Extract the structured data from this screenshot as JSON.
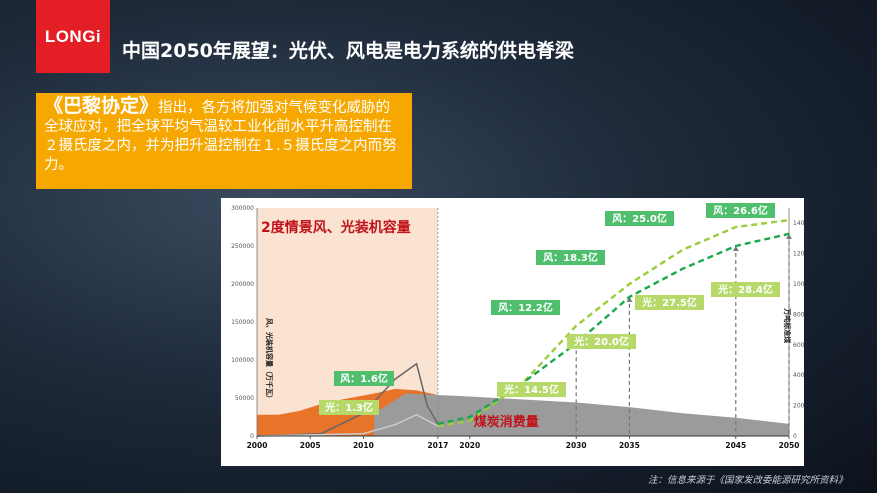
{
  "logo": {
    "text": "LONGi"
  },
  "title": "中国2050年展望：光伏、风电是电力系统的供电脊梁",
  "callout": {
    "accord": "《巴黎协定》",
    "text": "指出，各方将加强对气候变化威胁的全球应对，把全球平均气温较工业化前水平升高控制在２摄氏度之内，并为把升温控制在１.５摄氏度之内而努力。"
  },
  "note": "注：信息来源于《国家发改委能源研究所资料》",
  "chart_data": {
    "type": "line",
    "title": "2度情景风、光装机容量",
    "annotation_coal": "煤炭消费量",
    "ylabel_left": "风、光装机容量（万千瓦）",
    "ylabel_right": "万吨标准煤",
    "ylim_left": [
      0,
      300000
    ],
    "ylim_right": [
      0,
      15000
    ],
    "yticks_left": [
      "0",
      "50000",
      "100000",
      "150000",
      "200000",
      "250000",
      "300000"
    ],
    "yticks_right": [
      "0",
      "2000",
      "4000",
      "6000",
      "8000",
      "10000",
      "12000",
      "14000"
    ],
    "xticks": [
      "2000",
      "2005",
      "2010",
      "2017",
      "2020",
      "2030",
      "2035",
      "2045",
      "2050"
    ],
    "colors": {
      "wind": "#1aa84a",
      "solar": "#9ccc3c",
      "coal": "#888888",
      "history": "#e8742a"
    },
    "labels": [
      {
        "series": "wind",
        "year": 2011,
        "text": "风：1.6亿"
      },
      {
        "series": "solar",
        "year": 2011,
        "text": "光：1.3亿"
      },
      {
        "series": "wind",
        "year": 2030,
        "text": "风：12.2亿"
      },
      {
        "series": "solar",
        "year": 2030,
        "text": "光：14.5亿"
      },
      {
        "series": "wind",
        "year": 2035,
        "text": "风：18.3亿"
      },
      {
        "series": "solar",
        "year": 2035,
        "text": "光：20.0亿"
      },
      {
        "series": "wind",
        "year": 2045,
        "text": "风：25.0亿"
      },
      {
        "series": "solar",
        "year": 2045,
        "text": "光：27.5亿"
      },
      {
        "series": "wind",
        "year": 2050,
        "text": "风：26.6亿"
      },
      {
        "series": "solar",
        "year": 2050,
        "text": "光：28.4亿"
      }
    ],
    "wind": {
      "x": [
        2017,
        2020,
        2025,
        2030,
        2035,
        2040,
        2045,
        2050
      ],
      "y": [
        16000,
        25000,
        70000,
        122000,
        183000,
        220000,
        250000,
        266000
      ]
    },
    "solar": {
      "x": [
        2017,
        2020,
        2025,
        2030,
        2035,
        2040,
        2045,
        2050
      ],
      "y": [
        13000,
        20000,
        70000,
        145000,
        200000,
        245000,
        275000,
        284000
      ]
    },
    "coal": {
      "x": [
        2017,
        2020,
        2025,
        2030,
        2035,
        2040,
        2045,
        2050
      ],
      "y": [
        2700,
        2600,
        2400,
        2200,
        1900,
        1500,
        1200,
        800
      ]
    }
  }
}
